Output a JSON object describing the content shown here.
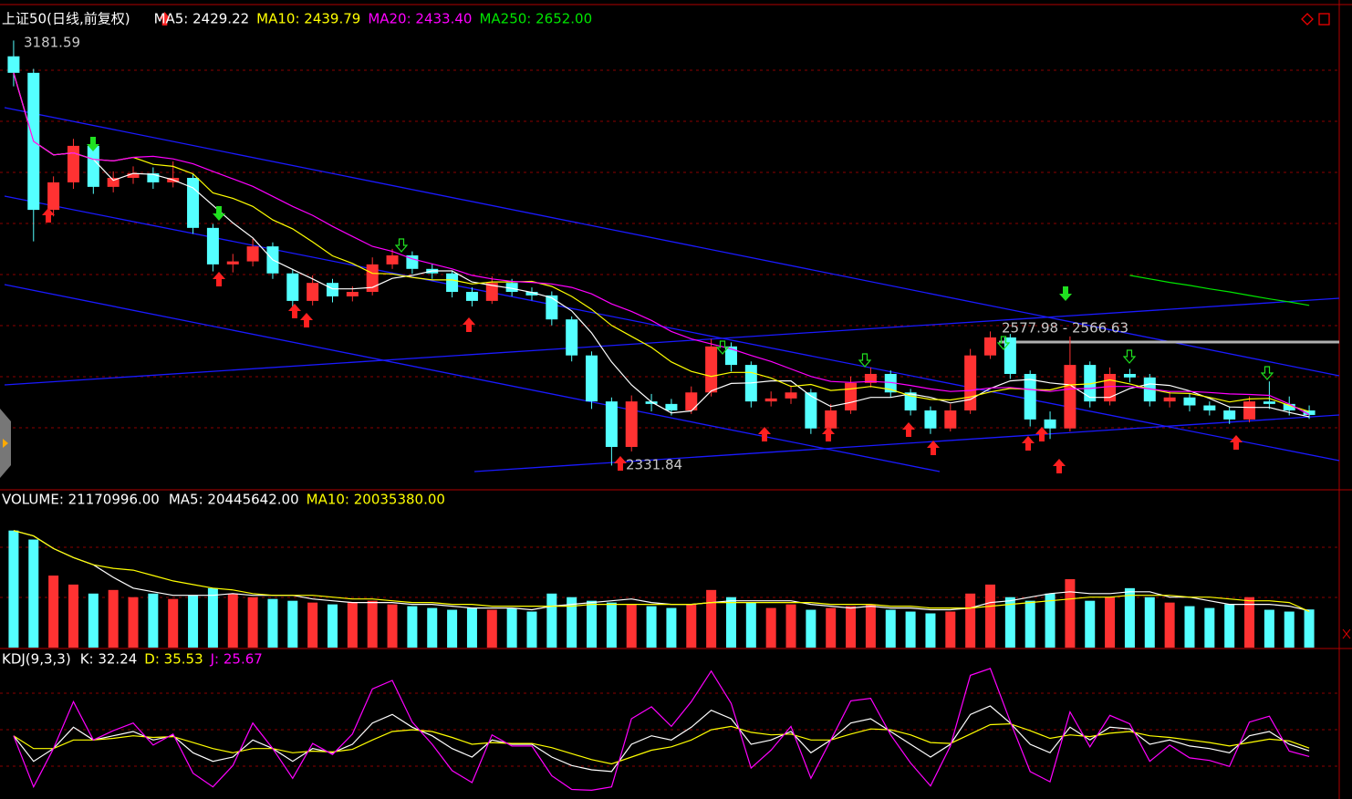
{
  "chart_data": [
    {
      "type": "candlestick",
      "title": "上证50(日线,前复权)",
      "up_color": "#ff3232",
      "down_color": "#54ffff",
      "ylim": [
        2287,
        3248
      ],
      "open": [
        3150,
        3117,
        2843,
        2898,
        2971,
        2889,
        2907,
        2916,
        2898,
        2907,
        2807,
        2734,
        2740,
        2770,
        2716,
        2661,
        2697,
        2670,
        2679,
        2734,
        2752,
        2725,
        2716,
        2679,
        2661,
        2697,
        2679,
        2672,
        2624,
        2552,
        2460,
        2369,
        2460,
        2455,
        2442,
        2478,
        2570,
        2533,
        2460,
        2466,
        2478,
        2406,
        2442,
        2497,
        2515,
        2478,
        2442,
        2406,
        2442,
        2552,
        2588,
        2515,
        2424,
        2406,
        2533,
        2460,
        2515,
        2508,
        2460,
        2468,
        2452,
        2442,
        2424,
        2460,
        2455,
        2442
      ],
      "high": [
        3181.59,
        3125,
        2910,
        2985,
        2980,
        2920,
        2930,
        2928,
        2940,
        2915,
        2815,
        2755,
        2785,
        2778,
        2725,
        2712,
        2705,
        2690,
        2748,
        2765,
        2760,
        2735,
        2722,
        2688,
        2710,
        2705,
        2688,
        2680,
        2630,
        2560,
        2468,
        2472,
        2475,
        2465,
        2490,
        2585,
        2578,
        2540,
        2480,
        2492,
        2485,
        2455,
        2510,
        2528,
        2522,
        2485,
        2450,
        2455,
        2565,
        2600,
        2595,
        2522,
        2440,
        2590,
        2540,
        2528,
        2525,
        2515,
        2480,
        2475,
        2460,
        2450,
        2470,
        2500,
        2470,
        2452
      ],
      "low": [
        3090,
        2780,
        2830,
        2885,
        2875,
        2878,
        2895,
        2885,
        2888,
        2795,
        2720,
        2718,
        2730,
        2705,
        2648,
        2652,
        2658,
        2660,
        2672,
        2725,
        2715,
        2705,
        2668,
        2650,
        2655,
        2670,
        2662,
        2612,
        2540,
        2445,
        2331.84,
        2360,
        2440,
        2432,
        2435,
        2470,
        2520,
        2448,
        2450,
        2455,
        2395,
        2398,
        2435,
        2488,
        2468,
        2432,
        2395,
        2400,
        2435,
        2545,
        2505,
        2410,
        2385,
        2400,
        2448,
        2452,
        2498,
        2450,
        2448,
        2440,
        2432,
        2415,
        2418,
        2445,
        2432,
        2425
      ],
      "close": [
        3117,
        2843,
        2898,
        2971,
        2889,
        2907,
        2916,
        2898,
        2907,
        2807,
        2734,
        2740,
        2770,
        2716,
        2661,
        2697,
        2670,
        2679,
        2734,
        2752,
        2725,
        2716,
        2679,
        2661,
        2697,
        2679,
        2672,
        2624,
        2552,
        2460,
        2369,
        2460,
        2455,
        2442,
        2478,
        2570,
        2533,
        2460,
        2466,
        2478,
        2406,
        2442,
        2497,
        2515,
        2478,
        2442,
        2406,
        2442,
        2552,
        2588,
        2515,
        2424,
        2406,
        2533,
        2460,
        2515,
        2508,
        2460,
        2468,
        2452,
        2442,
        2424,
        2460,
        2455,
        2442,
        2433
      ],
      "series": [
        {
          "label": "MA5: 2429.22",
          "color": "#ffffff",
          "values": [
            3117,
            2980,
            2953,
            2957,
            2944,
            2902,
            2916,
            2914,
            2903,
            2887,
            2852,
            2817,
            2787,
            2743,
            2724,
            2705,
            2685,
            2685,
            2688,
            2706,
            2712,
            2721,
            2721,
            2699,
            2692,
            2686,
            2678,
            2667,
            2641,
            2597,
            2539,
            2493,
            2459,
            2437,
            2441,
            2481,
            2496,
            2497,
            2501,
            2501,
            2471,
            2450,
            2458,
            2468,
            2468,
            2475,
            2468,
            2457,
            2464,
            2486,
            2501,
            2504,
            2497,
            2493,
            2468,
            2468,
            2486,
            2495,
            2492,
            2481,
            2466,
            2449,
            2448,
            2448,
            2438,
            2429.22
          ]
        },
        {
          "label": "MA10: 2439.79",
          "color": "#ffff00",
          "values": [
            3117,
            2980,
            2953,
            2957,
            2944,
            2941,
            2948,
            2934,
            2930,
            2915,
            2877,
            2866,
            2850,
            2823,
            2805,
            2779,
            2751,
            2736,
            2716,
            2715,
            2708,
            2703,
            2703,
            2695,
            2699,
            2699,
            2700,
            2690,
            2670,
            2644,
            2612,
            2590,
            2568,
            2539,
            2520,
            2510,
            2518,
            2518,
            2507,
            2490,
            2494,
            2482,
            2485,
            2490,
            2484,
            2471,
            2464,
            2463,
            2469,
            2479,
            2486,
            2484,
            2483,
            2493,
            2495,
            2503,
            2495,
            2485,
            2477,
            2476,
            2468,
            2459,
            2465,
            2466,
            2452,
            2439.79
          ]
        },
        {
          "label": "MA20: 2433.40",
          "color": "#ff00ff",
          "values": [
            3117,
            2980,
            2953,
            2957,
            2944,
            2941,
            2948,
            2950,
            2945,
            2935,
            2920,
            2905,
            2890,
            2870,
            2850,
            2832,
            2810,
            2790,
            2770,
            2760,
            2745,
            2735,
            2725,
            2712,
            2705,
            2700,
            2698,
            2695,
            2688,
            2675,
            2655,
            2640,
            2622,
            2600,
            2585,
            2575,
            2565,
            2552,
            2540,
            2525,
            2510,
            2500,
            2498,
            2500,
            2498,
            2492,
            2485,
            2480,
            2482,
            2487,
            2488,
            2484,
            2480,
            2485,
            2486,
            2490,
            2490,
            2485,
            2480,
            2480,
            2478,
            2475,
            2474,
            2472,
            2455,
            2433.4
          ]
        },
        {
          "label": "MA250: 2652.00",
          "color": "#00e600",
          "values": [
            null,
            null,
            null,
            null,
            null,
            null,
            null,
            null,
            null,
            null,
            null,
            null,
            null,
            null,
            null,
            null,
            null,
            null,
            null,
            null,
            null,
            null,
            null,
            null,
            null,
            null,
            null,
            null,
            null,
            null,
            null,
            null,
            null,
            null,
            null,
            null,
            null,
            null,
            null,
            null,
            null,
            null,
            null,
            null,
            null,
            null,
            null,
            null,
            null,
            null,
            null,
            null,
            null,
            null,
            null,
            null,
            2712,
            2705,
            2698,
            2692,
            2685,
            2679,
            2672,
            2665,
            2659,
            2652.0
          ]
        }
      ],
      "annotations": [
        "3181.59",
        "2331.84",
        "2577.98 - 2566.63"
      ]
    },
    {
      "type": "bar",
      "title": "VOLUME: 21170996.00",
      "ylim": [
        0,
        78000000
      ],
      "values": [
        65000000,
        60000000,
        40000000,
        35000000,
        30000000,
        32000000,
        28000000,
        30000000,
        27000000,
        29000000,
        33000000,
        30000000,
        28000000,
        27000000,
        26000000,
        25000000,
        24000000,
        25000000,
        26000000,
        24000000,
        23000000,
        22000000,
        21000000,
        22000000,
        21000000,
        22000000,
        20000000,
        30000000,
        28000000,
        26000000,
        25000000,
        24000000,
        23000000,
        22000000,
        24000000,
        32000000,
        28000000,
        25000000,
        22000000,
        24000000,
        21000000,
        22000000,
        23000000,
        24000000,
        21000000,
        20000000,
        19000000,
        20000000,
        30000000,
        35000000,
        28000000,
        26000000,
        30000000,
        38000000,
        26000000,
        28000000,
        33000000,
        28000000,
        25000000,
        23000000,
        22000000,
        24000000,
        28000000,
        21000000,
        20000000,
        21170996
      ],
      "series": [
        {
          "label": "MA5: 20445642.00",
          "color": "#ffffff",
          "values": [
            65000000,
            62000000,
            55000000,
            50000000,
            46000000,
            39000000,
            33000000,
            31000000,
            29000000,
            29000000,
            29000000,
            30000000,
            29000000,
            29000000,
            29000000,
            27000000,
            26000000,
            25000000,
            25000000,
            25000000,
            24000000,
            24000000,
            23000000,
            22000000,
            22000000,
            22000000,
            21000000,
            23000000,
            24000000,
            25000000,
            26000000,
            27000000,
            25000000,
            24000000,
            24000000,
            25000000,
            26000000,
            26000000,
            26000000,
            26000000,
            24000000,
            23000000,
            22000000,
            23000000,
            22000000,
            22000000,
            21000000,
            21000000,
            22000000,
            25000000,
            26000000,
            28000000,
            30000000,
            31000000,
            30000000,
            30000000,
            31000000,
            31000000,
            28000000,
            28000000,
            26000000,
            24000000,
            24000000,
            24000000,
            23000000,
            20445642
          ]
        },
        {
          "label": "MA10: 20035380.00",
          "color": "#ffff00",
          "values": [
            65000000,
            62000000,
            55000000,
            50000000,
            46000000,
            44000000,
            43000000,
            40000000,
            37000000,
            35000000,
            33000000,
            32000000,
            30000000,
            29000000,
            29000000,
            29000000,
            28000000,
            27000000,
            27000000,
            26000000,
            25000000,
            25000000,
            24000000,
            24000000,
            23000000,
            23000000,
            23000000,
            23000000,
            23000000,
            24000000,
            24000000,
            24000000,
            24000000,
            24000000,
            24000000,
            25000000,
            25000000,
            25000000,
            25000000,
            25000000,
            25000000,
            24000000,
            24000000,
            24000000,
            23000000,
            23000000,
            22000000,
            22000000,
            22000000,
            23000000,
            24000000,
            25000000,
            26000000,
            27000000,
            28000000,
            28000000,
            29000000,
            29000000,
            29000000,
            28000000,
            28000000,
            27000000,
            26000000,
            26000000,
            25000000,
            20035380
          ]
        }
      ]
    },
    {
      "type": "line",
      "title": "KDJ(9,3,3)",
      "ylim": [
        -20,
        130
      ],
      "series": [
        {
          "label": "K: 32.24",
          "color": "#ffffff",
          "values": [
            50,
            20,
            35,
            60,
            45,
            50,
            55,
            45,
            50,
            30,
            20,
            25,
            45,
            35,
            20,
            35,
            30,
            40,
            65,
            75,
            60,
            50,
            35,
            25,
            45,
            40,
            40,
            25,
            15,
            10,
            8,
            40,
            50,
            45,
            60,
            80,
            70,
            40,
            45,
            55,
            30,
            45,
            65,
            70,
            55,
            40,
            25,
            40,
            75,
            85,
            65,
            40,
            30,
            60,
            45,
            60,
            58,
            40,
            45,
            38,
            35,
            30,
            50,
            55,
            40,
            32.24
          ]
        },
        {
          "label": "D: 35.53",
          "color": "#ffff00",
          "values": [
            50,
            35,
            35,
            45,
            45,
            47,
            50,
            48,
            49,
            42,
            35,
            30,
            35,
            35,
            30,
            32,
            31,
            34,
            45,
            55,
            57,
            55,
            48,
            40,
            42,
            41,
            41,
            36,
            29,
            22,
            17,
            25,
            33,
            37,
            45,
            57,
            61,
            54,
            51,
            52,
            45,
            45,
            52,
            58,
            57,
            51,
            42,
            41,
            52,
            63,
            64,
            56,
            47,
            51,
            49,
            53,
            55,
            50,
            48,
            45,
            42,
            38,
            42,
            46,
            44,
            35.53
          ]
        },
        {
          "label": "J: 25.67",
          "color": "#ff00ff",
          "values": [
            50,
            -10,
            35,
            90,
            45,
            56,
            65,
            39,
            52,
            6,
            -10,
            15,
            65,
            35,
            0,
            41,
            28,
            52,
            105,
            115,
            66,
            40,
            9,
            -5,
            51,
            38,
            38,
            3,
            -13,
            -14,
            -10,
            70,
            84,
            61,
            90,
            126,
            88,
            12,
            33,
            61,
            0,
            45,
            91,
            94,
            51,
            18,
            -9,
            38,
            121,
            129,
            67,
            8,
            -4,
            78,
            37,
            74,
            64,
            20,
            39,
            24,
            21,
            14,
            66,
            73,
            32,
            25.67
          ]
        }
      ]
    }
  ]
}
